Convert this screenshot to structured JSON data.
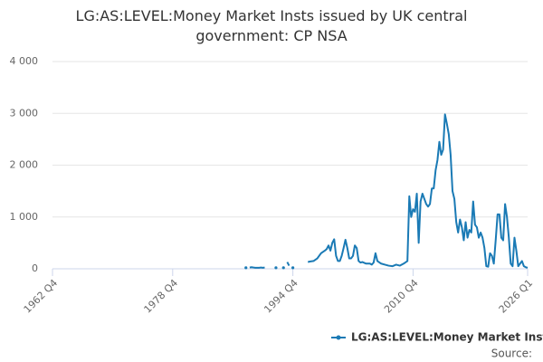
{
  "chart_data": {
    "type": "line",
    "title": "LG:AS:LEVEL:Money Market Insts issued by UK central government: CP NSA",
    "source": "Source:",
    "x": [
      1988.5,
      null,
      1989.0,
      1989.25,
      1989.5,
      1989.75,
      1990.0,
      1990.25,
      1990.5,
      1990.75,
      1991.0,
      null,
      1992.5,
      null,
      1993.5,
      null,
      1994.0,
      1994.25,
      null,
      1994.75,
      null,
      1996.75,
      1997.0,
      1997.5,
      1998.0,
      1998.5,
      1999.0,
      1999.25,
      1999.5,
      1999.75,
      2000.0,
      2000.25,
      2000.5,
      2000.75,
      2001.0,
      2001.25,
      2001.5,
      2001.75,
      2002.0,
      2002.25,
      2002.5,
      2002.75,
      2003.0,
      2003.25,
      2003.5,
      2003.75,
      2004.0,
      2004.5,
      2005.0,
      2005.25,
      2005.5,
      2005.75,
      2006.0,
      2006.5,
      2007.0,
      2007.5,
      2008.0,
      2008.5,
      2009.0,
      2009.5,
      2010.0,
      2010.25,
      2010.5,
      2010.75,
      2011.0,
      2011.25,
      2011.5,
      2011.75,
      2012.0,
      2012.25,
      2012.5,
      2012.75,
      2013.0,
      2013.25,
      2013.5,
      2013.75,
      2014.0,
      2014.25,
      2014.5,
      2014.75,
      2015.0,
      2015.25,
      2015.5,
      2015.75,
      2016.0,
      2016.25,
      2016.5,
      2016.75,
      2017.0,
      2017.25,
      2017.5,
      2017.75,
      2018.0,
      2018.25,
      2018.5,
      2018.75,
      2019.0,
      2019.25,
      2019.5,
      2019.75,
      2020.0,
      2020.25,
      2020.5,
      2020.75,
      2021.0,
      2021.25,
      2021.5,
      2021.75,
      2022.0,
      2022.25,
      2022.5,
      2022.75,
      2023.0,
      2023.25,
      2023.5,
      2023.75,
      2024.0,
      2024.25,
      2024.5,
      2024.75,
      2025.0,
      2025.25,
      2025.5,
      2025.75,
      2026.0
    ],
    "series": [
      {
        "name": "LG:AS:LEVEL:Money Market Insts issued by UK central government: CP NSA",
        "color": "#1a7ab5",
        "values": [
          20,
          null,
          25,
          30,
          25,
          20,
          20,
          20,
          25,
          20,
          25,
          null,
          20,
          null,
          20,
          null,
          130,
          60,
          null,
          20,
          null,
          130,
          140,
          150,
          200,
          300,
          350,
          380,
          450,
          350,
          500,
          570,
          250,
          150,
          150,
          250,
          400,
          560,
          400,
          200,
          200,
          250,
          450,
          400,
          150,
          120,
          130,
          100,
          100,
          80,
          120,
          300,
          150,
          100,
          80,
          60,
          50,
          80,
          60,
          100,
          150,
          1400,
          1000,
          1150,
          1100,
          1450,
          500,
          1300,
          1450,
          1350,
          1250,
          1200,
          1250,
          1550,
          1550,
          1900,
          2100,
          2450,
          2200,
          2300,
          2980,
          2800,
          2600,
          2200,
          1500,
          1350,
          900,
          700,
          950,
          800,
          550,
          900,
          600,
          750,
          700,
          1300,
          850,
          800,
          600,
          700,
          600,
          400,
          50,
          40,
          300,
          250,
          100,
          550,
          1050,
          1050,
          600,
          550,
          1250,
          1000,
          600,
          100,
          50,
          600,
          350,
          50,
          100,
          150,
          50,
          30,
          20
        ]
      }
    ],
    "xlim": [
      1962.75,
      2026.0
    ],
    "xticks": [
      {
        "value": 1962.75,
        "label": "1962 Q4"
      },
      {
        "value": 1978.75,
        "label": "1978 Q4"
      },
      {
        "value": 1994.75,
        "label": "1994 Q4"
      },
      {
        "value": 2010.75,
        "label": "2010 Q4"
      },
      {
        "value": 2026.0,
        "label": "2026 Q1"
      }
    ],
    "ylim": [
      0,
      4000
    ],
    "yticks": [
      0,
      {
        "value": 1000,
        "label": "1 000"
      },
      {
        "value": 2000,
        "label": "2 000"
      },
      {
        "value": 3000,
        "label": "3 000"
      },
      {
        "value": 4000,
        "label": "4 000"
      }
    ],
    "grid": true
  }
}
